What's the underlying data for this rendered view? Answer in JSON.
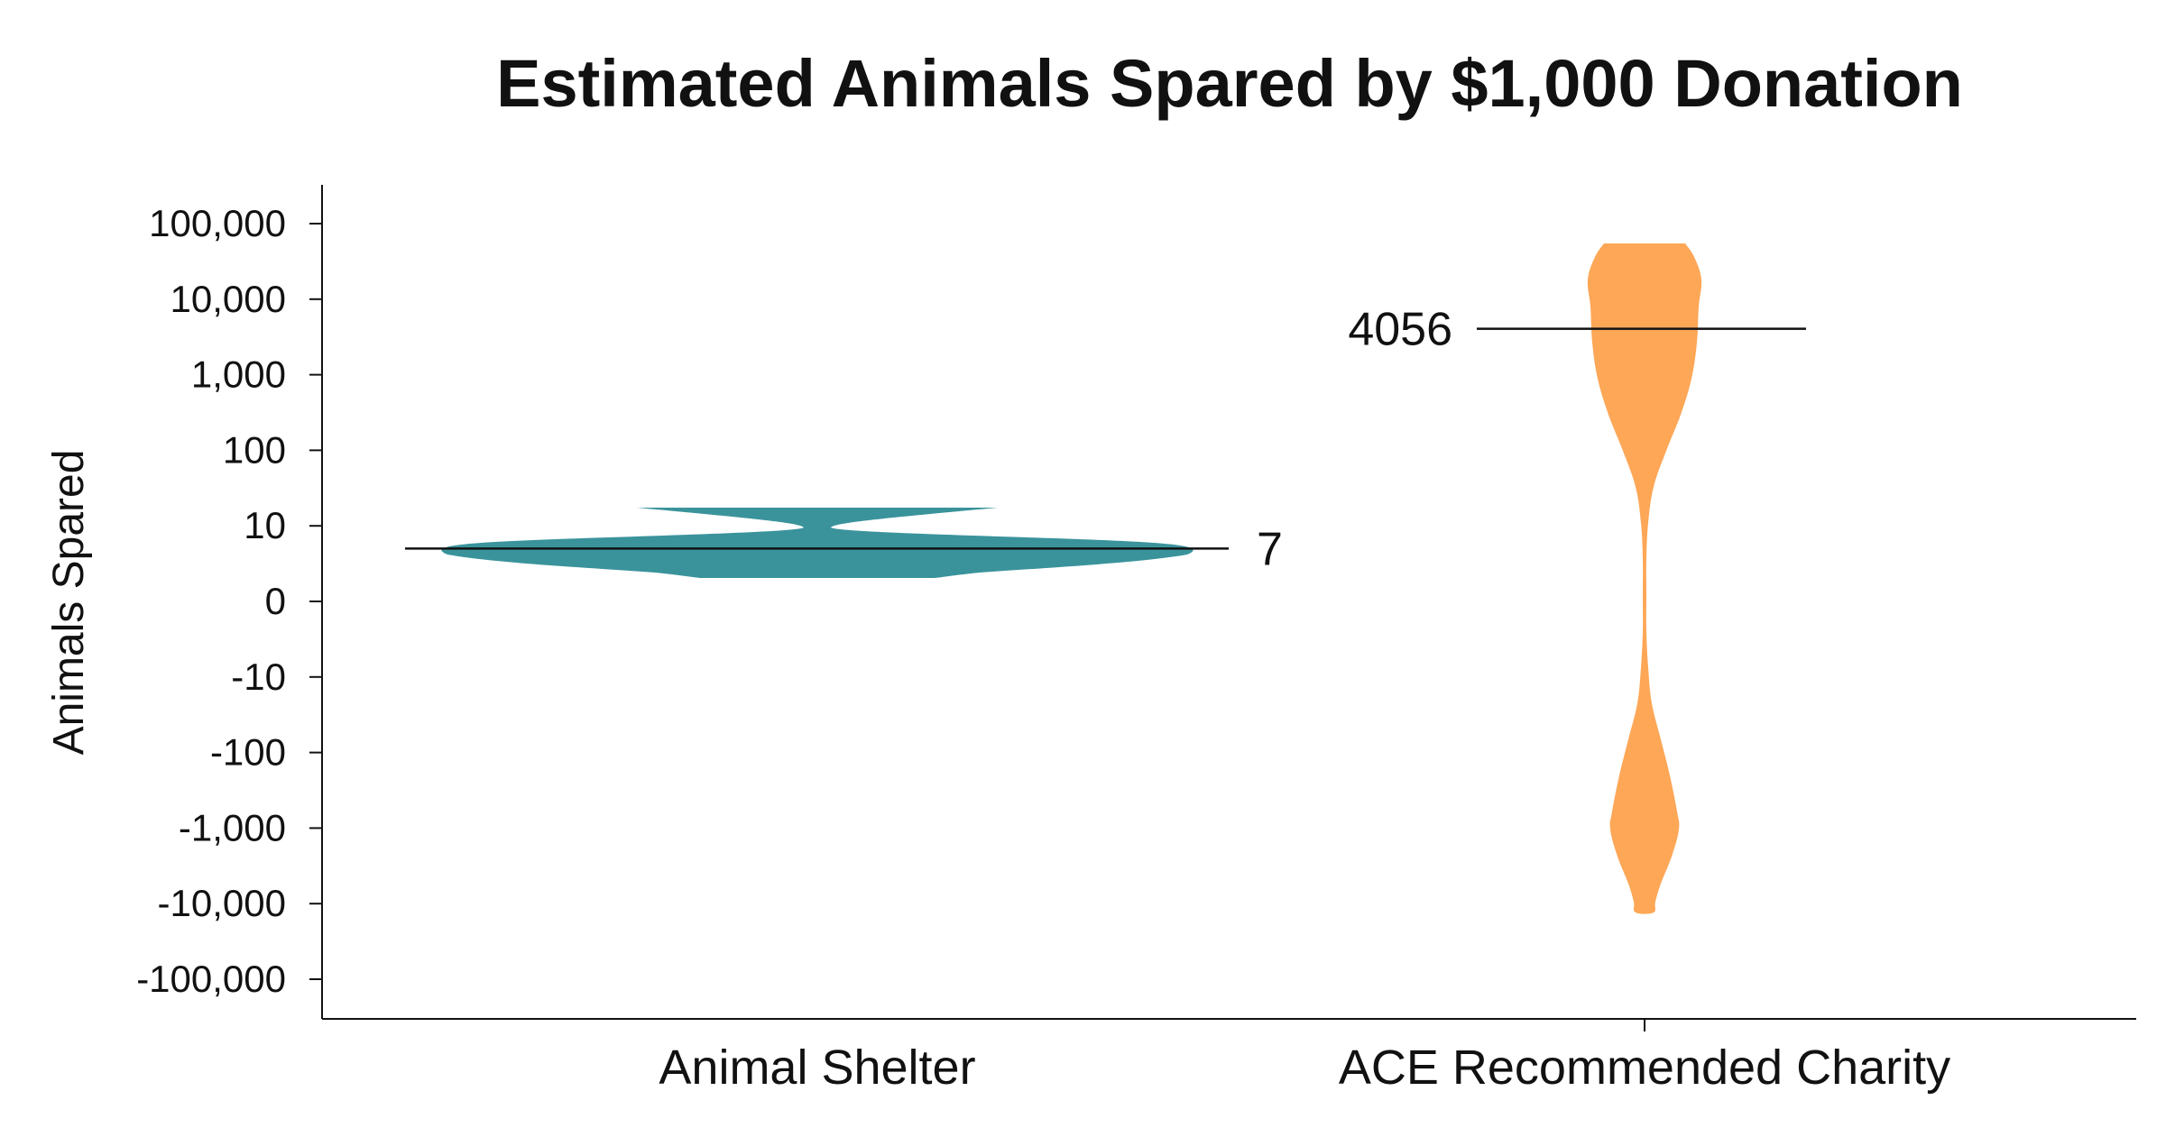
{
  "chart_data": {
    "type": "violin",
    "title": "Estimated Animals Spared by $1,000 Donation",
    "ylabel": "Animals Spared",
    "y_scale": "symlog",
    "y_ticks": [
      "100,000",
      "10,000",
      "1,000",
      "100",
      "10",
      "0",
      "-10",
      "-100",
      "-1,000",
      "-10,000",
      "-100,000"
    ],
    "categories": [
      "Animal Shelter",
      "ACE Recommended Charity"
    ],
    "series": [
      {
        "name": "Animal Shelter",
        "color": "#3a939b",
        "median": 7,
        "median_label": "7",
        "min": 2,
        "max": 20
      },
      {
        "name": "ACE Recommended Charity",
        "color": "#fda757",
        "median": 4056,
        "median_label": "4056",
        "min": -15000,
        "max": 60000
      }
    ]
  }
}
